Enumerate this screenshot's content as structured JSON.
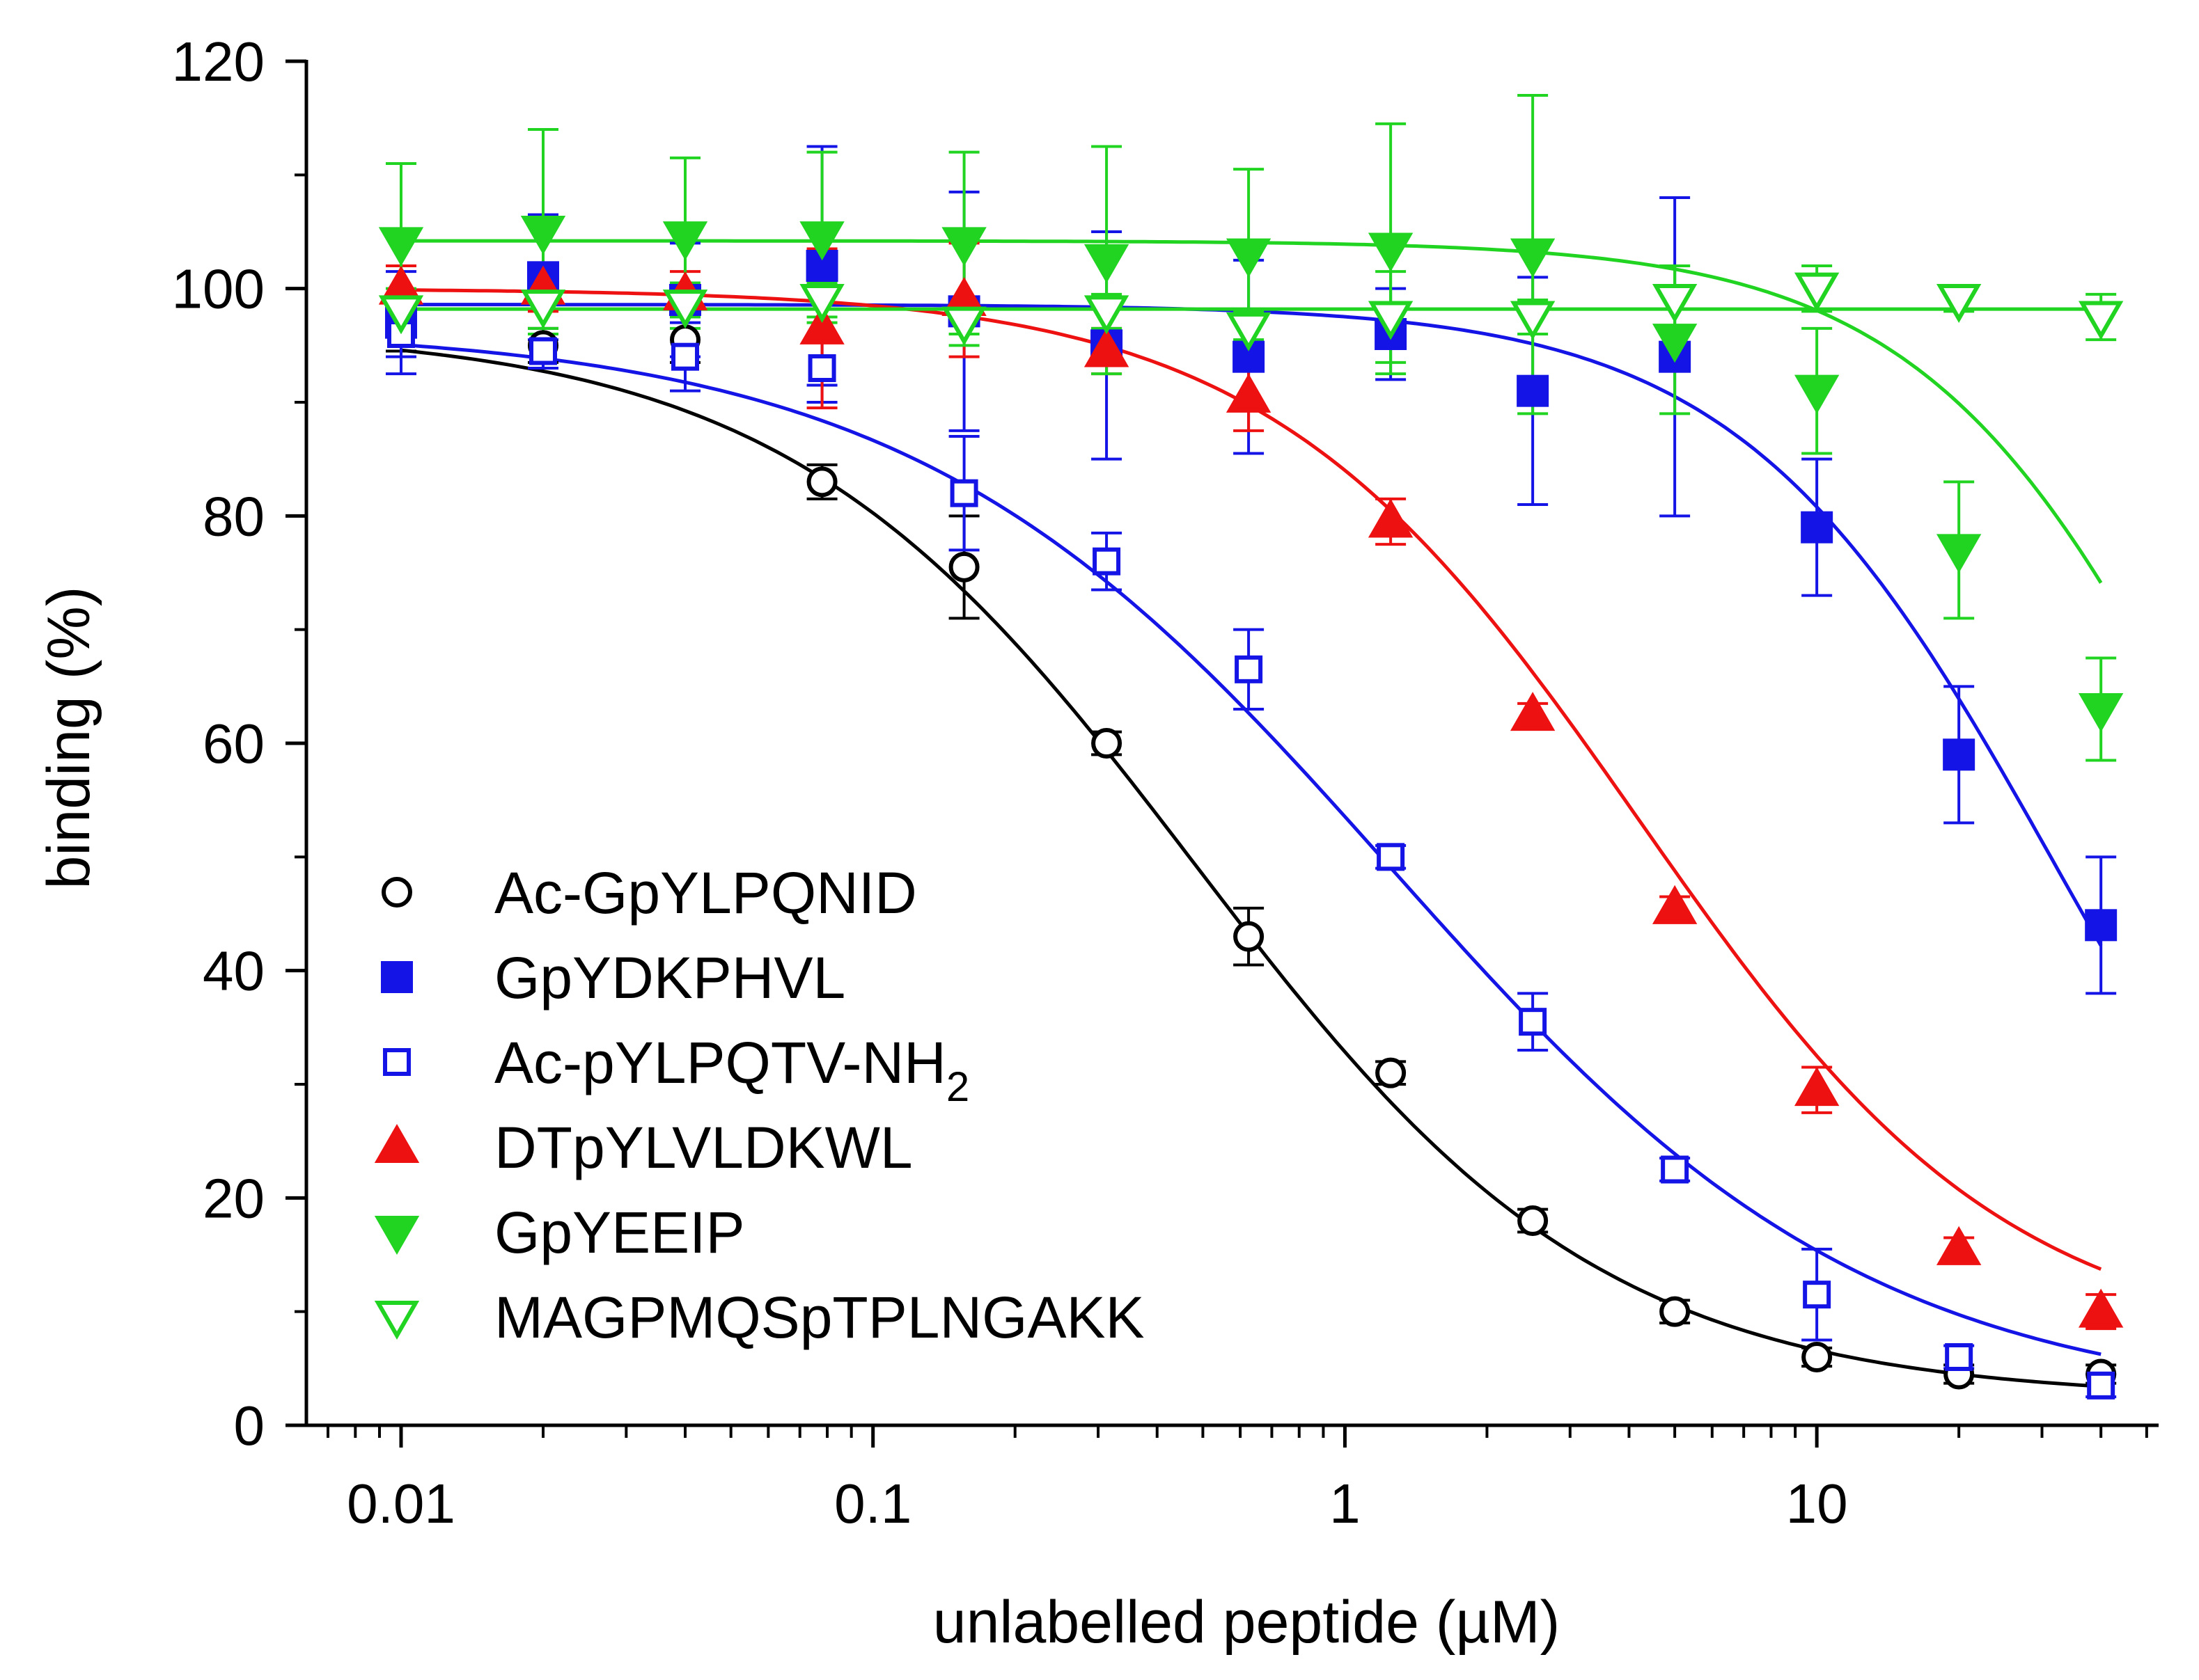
{
  "chart_data": {
    "type": "scatter",
    "title": "",
    "xlabel": "unlabelled peptide (µM)",
    "ylabel": "binding (%)",
    "xscale": "log",
    "xlim": [
      0.0063,
      53
    ],
    "ylim": [
      0,
      120
    ],
    "x_tick_values": [
      0.01,
      0.1,
      1,
      10
    ],
    "x_tick_labels": [
      "0.01",
      "0.1",
      "1",
      "10"
    ],
    "y_tick_values": [
      0,
      20,
      40,
      60,
      80,
      100,
      120
    ],
    "y_tick_labels": [
      "0",
      "20",
      "40",
      "60",
      "80",
      "100",
      "120"
    ],
    "legend_position": "bottom-left",
    "x": [
      0.01,
      0.02,
      0.04,
      0.078,
      0.156,
      0.3125,
      0.625,
      1.25,
      2.5,
      5,
      10,
      20,
      40
    ],
    "series": [
      {
        "name": "Ac-GpYLPQNID",
        "name_main": "Ac-GpYLPQNID",
        "name_sub": "",
        "name_tail": "",
        "color": "#000000",
        "marker": "circle-open",
        "values": [
          96.5,
          95,
          95.5,
          83,
          75.5,
          60,
          43,
          31,
          18,
          10,
          6,
          4.5,
          4.5
        ],
        "errors": [
          2,
          1.5,
          2,
          1.5,
          4.5,
          1,
          2.5,
          1,
          1,
          1,
          0.8,
          0.8,
          0.8
        ],
        "fit": {
          "top": 96.5,
          "bottom": 2.3,
          "ec50": 0.48,
          "hill": 1.0
        }
      },
      {
        "name": "GpYDKPHVL",
        "name_main": "GpYDKPHVL",
        "name_sub": "",
        "name_tail": "",
        "color": "#1414e6",
        "marker": "square-filled",
        "values": [
          97,
          101,
          99,
          102,
          98,
          95,
          94,
          96,
          91,
          94,
          79,
          59,
          44
        ],
        "errors": [
          4.5,
          5.5,
          5,
          10.5,
          10.5,
          10,
          8.5,
          4,
          10,
          14,
          6,
          6,
          6
        ],
        "fit": {
          "top": 98.6,
          "bottom": 0,
          "ec50": 32,
          "hill": 1.3
        }
      },
      {
        "name": "Ac-pYLPQTV-NH2",
        "name_main": "Ac-pYLPQTV-NH",
        "name_sub": "2",
        "name_tail": "",
        "color": "#1414e6",
        "marker": "square-open",
        "values": [
          96,
          94.5,
          94,
          93,
          82,
          76,
          66.5,
          50,
          35.5,
          22.5,
          11.5,
          6,
          3.5
        ],
        "errors": [
          2,
          1.5,
          3,
          3,
          5,
          2.5,
          3.5,
          1,
          2.5,
          1,
          4,
          1,
          1
        ],
        "fit": {
          "top": 96.6,
          "bottom": 1.5,
          "ec50": 1.25,
          "hill": 0.85
        }
      },
      {
        "name": "DTpYLVLDKWL",
        "name_main": "DTpYLVLDKWL",
        "name_sub": "",
        "name_tail": "",
        "color": "#ee1111",
        "marker": "triangle-up-filled",
        "values": [
          100,
          100,
          99.5,
          96.5,
          99,
          94.5,
          90.5,
          79.5,
          62.5,
          45.5,
          29.5,
          15.5,
          10
        ],
        "errors": [
          2,
          2,
          2,
          7,
          5,
          2,
          3,
          2,
          1,
          1,
          2,
          1,
          1.5
        ],
        "fit": {
          "top": 100,
          "bottom": 6.5,
          "ec50": 4.2,
          "hill": 1.1
        }
      },
      {
        "name": "GpYEEIP",
        "name_main": "GpYEEIP",
        "name_sub": "",
        "name_tail": "",
        "color": "#22d422",
        "marker": "triangle-down-filled",
        "values": [
          104,
          105,
          104.5,
          104.5,
          104,
          102.5,
          103,
          103.5,
          103,
          95.5,
          91,
          77,
          63
        ],
        "errors": [
          7,
          9,
          7,
          7.5,
          8,
          10,
          7.5,
          11,
          14,
          6.5,
          5.5,
          6,
          4.5
        ],
        "fit": {
          "top": 104.2,
          "bottom": 0,
          "ec50": 78,
          "hill": 1.35
        }
      },
      {
        "name": "MAGPMQSpTPLNGAKK",
        "name_main": "MAGPMQSpTPLNGAKK",
        "name_sub": "",
        "name_tail": "",
        "color": "#22d422",
        "marker": "triangle-down-open",
        "values": [
          98,
          98.5,
          98.5,
          99,
          97,
          98,
          96.5,
          97.5,
          97.5,
          99,
          100,
          99,
          97.5
        ],
        "errors": [
          2,
          2,
          2,
          1.5,
          2,
          1.5,
          1.5,
          4,
          1.5,
          3,
          2,
          1,
          2
        ],
        "fit": {
          "top": 98.2,
          "bottom": 98.2,
          "ec50": 1,
          "hill": 1
        }
      }
    ]
  }
}
